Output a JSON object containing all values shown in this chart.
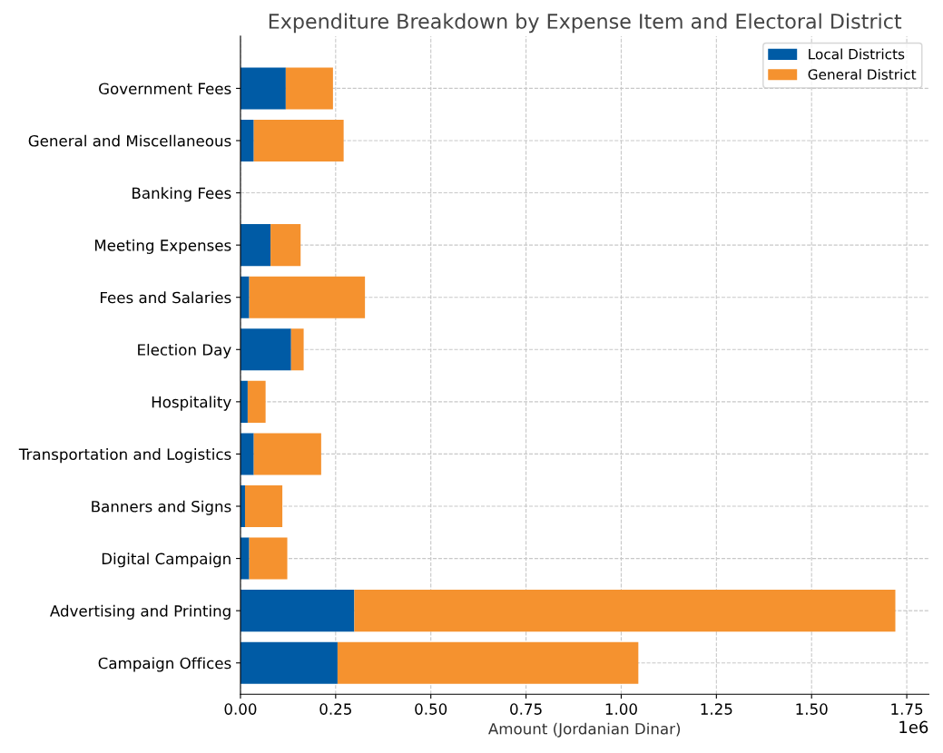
{
  "chart_data": {
    "type": "bar",
    "orientation": "horizontal",
    "stacked": true,
    "title": "Expenditure Breakdown by Expense Item and Electoral District",
    "xlabel": "Amount (Jordanian Dinar)",
    "categories": [
      "Government Fees",
      "General and Miscellaneous",
      "Banking Fees",
      "Meeting Expenses",
      "Fees and Salaries",
      "Election Day",
      "Hospitality",
      "Transportation and Logistics",
      "Banners and Signs",
      "Digital Campaign",
      "Advertising and Printing",
      "Campaign Offices"
    ],
    "series": [
      {
        "name": "Local Districts",
        "color": "#005ba5",
        "values": [
          0.119,
          0.035,
          null,
          0.079,
          0.023,
          0.133,
          0.019,
          0.035,
          0.012,
          0.023,
          0.299,
          0.255
        ]
      },
      {
        "name": "General District",
        "color": "#f5922f",
        "values": [
          0.124,
          0.236,
          null,
          0.079,
          0.304,
          0.033,
          0.047,
          0.177,
          0.098,
          0.1,
          1.421,
          0.79
        ]
      }
    ],
    "xlim": [
      0,
      1.808
    ],
    "xticks": [
      {
        "value": 0,
        "label": "0.00"
      },
      0.25,
      {
        "value": 0.5,
        "label": "0.50"
      },
      0.75,
      {
        "value": 1,
        "label": "1.00"
      },
      1.25,
      {
        "value": 1.5,
        "label": "1.50"
      },
      1.75
    ],
    "annotations": [
      "1e6"
    ],
    "grid": true,
    "line_style": "dashed",
    "legend": "top right"
  }
}
